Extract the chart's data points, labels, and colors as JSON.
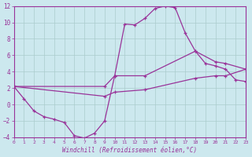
{
  "xlabel": "Windchill (Refroidissement éolien,°C)",
  "background_color": "#cce8ee",
  "grid_color": "#aacccc",
  "line_color": "#993399",
  "xmin": 0,
  "xmax": 23,
  "ymin": -4,
  "ymax": 12,
  "line1_x": [
    0,
    1,
    2,
    3,
    4,
    5,
    6,
    7,
    8,
    9,
    10,
    11,
    12,
    13,
    14,
    15,
    16,
    17,
    18,
    19,
    20,
    21,
    22,
    23
  ],
  "line1_y": [
    2.2,
    0.7,
    -0.8,
    -1.5,
    -1.8,
    -2.2,
    -3.8,
    -4.1,
    -3.5,
    -2.0,
    3.5,
    9.8,
    9.7,
    10.5,
    11.7,
    12.0,
    11.8,
    8.7,
    6.5,
    5.0,
    4.7,
    4.3,
    3.0,
    2.8
  ],
  "line2_x": [
    0,
    9,
    10,
    13,
    18,
    20,
    21,
    23
  ],
  "line2_y": [
    2.2,
    2.2,
    3.5,
    3.5,
    6.5,
    5.2,
    5.0,
    4.3
  ],
  "line3_x": [
    0,
    9,
    10,
    13,
    18,
    20,
    21,
    23
  ],
  "line3_y": [
    2.2,
    1.0,
    1.5,
    1.8,
    3.2,
    3.5,
    3.5,
    4.3
  ]
}
